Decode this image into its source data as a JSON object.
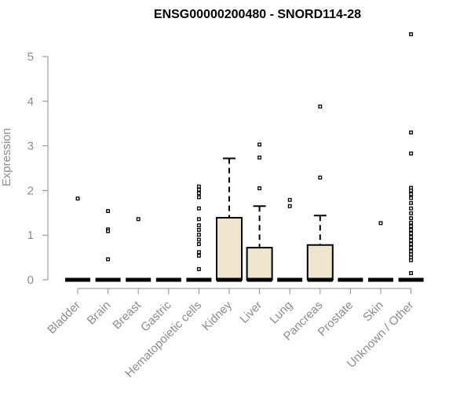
{
  "chart_data": {
    "type": "boxplot",
    "title": "ENSG00000200480 - SNORD114-28",
    "ylabel": "Expression",
    "xlabel": "",
    "ylim": [
      0,
      5.6
    ],
    "yticks": [
      0,
      1,
      2,
      3,
      4,
      5
    ],
    "grid": false,
    "colors": {
      "box_fill": "#ede6cc",
      "stroke": "#000000",
      "axis": "#8c8c8c"
    },
    "categories": [
      "Bladder",
      "Brain",
      "Breast",
      "Gastric",
      "Hematopoietic cells",
      "Kidney",
      "Liver",
      "Lung",
      "Pancreas",
      "Prostate",
      "Skin",
      "Unknown / Other"
    ],
    "boxes": [
      {
        "category": "Bladder",
        "q1": 0,
        "median": 0,
        "q3": 0,
        "whisker_high": 0,
        "outliers": [
          1.82
        ]
      },
      {
        "category": "Brain",
        "q1": 0,
        "median": 0,
        "q3": 0,
        "whisker_high": 0,
        "outliers": [
          1.54,
          1.13,
          1.09,
          0.46
        ]
      },
      {
        "category": "Breast",
        "q1": 0,
        "median": 0,
        "q3": 0,
        "whisker_high": 0,
        "outliers": [
          1.36
        ]
      },
      {
        "category": "Gastric",
        "q1": 0,
        "median": 0,
        "q3": 0,
        "whisker_high": 0,
        "outliers": []
      },
      {
        "category": "Hematopoietic cells",
        "q1": 0,
        "median": 0,
        "q3": 0,
        "whisker_high": 0,
        "outliers": [
          2.09,
          2.02,
          1.94,
          1.85,
          1.6,
          1.36,
          1.22,
          1.12,
          1.01,
          0.9,
          0.8,
          0.62,
          0.54,
          0.24
        ]
      },
      {
        "category": "Kidney",
        "q1": 0,
        "median": 0,
        "q3": 1.39,
        "whisker_high": 2.72,
        "outliers": []
      },
      {
        "category": "Liver",
        "q1": 0,
        "median": 0,
        "q3": 0.72,
        "whisker_high": 1.65,
        "outliers": [
          3.03,
          2.74,
          2.05
        ]
      },
      {
        "category": "Lung",
        "q1": 0,
        "median": 0,
        "q3": 0,
        "whisker_high": 0,
        "outliers": [
          1.79,
          1.65
        ]
      },
      {
        "category": "Pancreas",
        "q1": 0,
        "median": 0,
        "q3": 0.78,
        "whisker_high": 1.44,
        "outliers": [
          3.88,
          2.29
        ]
      },
      {
        "category": "Prostate",
        "q1": 0,
        "median": 0,
        "q3": 0,
        "whisker_high": 0,
        "outliers": []
      },
      {
        "category": "Skin",
        "q1": 0,
        "median": 0,
        "q3": 0,
        "whisker_high": 0,
        "outliers": [
          1.27
        ]
      },
      {
        "category": "Unknown / Other",
        "q1": 0,
        "median": 0,
        "q3": 0,
        "whisker_high": 0,
        "outliers": [
          5.5,
          3.3,
          2.83,
          2.06,
          2.0,
          1.92,
          1.83,
          1.72,
          1.6,
          1.49,
          1.38,
          1.28,
          1.2,
          1.12,
          1.04,
          0.96,
          0.88,
          0.8,
          0.72,
          0.64,
          0.57,
          0.5,
          0.44,
          0.15
        ]
      }
    ]
  }
}
